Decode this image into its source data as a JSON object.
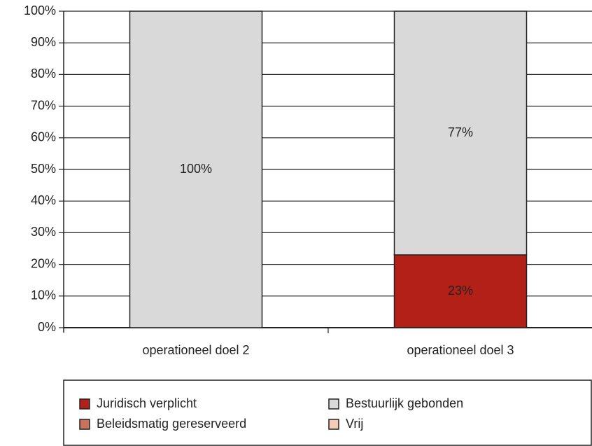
{
  "chart_data": {
    "type": "stacked_bar",
    "categories": [
      "operationeel doel 2",
      "operationeel doel 3"
    ],
    "series": [
      {
        "name": "Juridisch verplicht",
        "color": "#b22017",
        "values": [
          0,
          23
        ],
        "value_labels": [
          null,
          "23%"
        ]
      },
      {
        "name": "Beleidsmatig gereserveerd",
        "color": "#c8735a",
        "values": [
          0,
          0
        ],
        "value_labels": [
          null,
          null
        ]
      },
      {
        "name": "Bestuurlijk gebonden",
        "color": "#d9d9d9",
        "values": [
          100,
          77
        ],
        "value_labels": [
          "100%",
          "77%"
        ]
      },
      {
        "name": "Vrij",
        "color": "#f5cdb6",
        "values": [
          0,
          0
        ],
        "value_labels": [
          null,
          null
        ]
      }
    ],
    "ylim": [
      0,
      100
    ],
    "yticks": [
      {
        "value": 0,
        "label": "0%"
      },
      {
        "value": 10,
        "label": "10%"
      },
      {
        "value": 20,
        "label": "20%"
      },
      {
        "value": 30,
        "label": "30%"
      },
      {
        "value": 40,
        "label": "40%"
      },
      {
        "value": 50,
        "label": "50%"
      },
      {
        "value": 60,
        "label": "60%"
      },
      {
        "value": 70,
        "label": "70%"
      },
      {
        "value": 80,
        "label": "80%"
      },
      {
        "value": 90,
        "label": "90%"
      },
      {
        "value": 100,
        "label": "100%"
      }
    ],
    "grid": true
  }
}
